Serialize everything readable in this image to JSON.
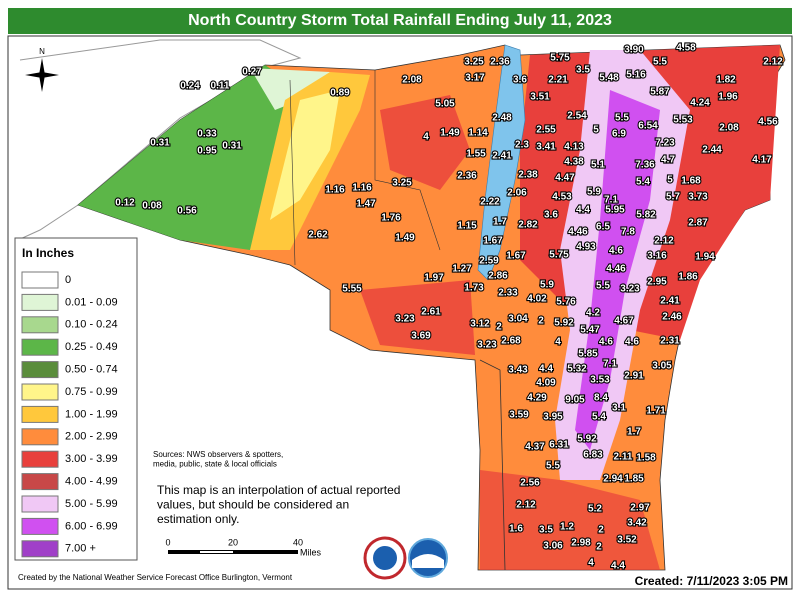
{
  "header": {
    "title": "North Country Storm Total Rainfall Ending July 11, 2023"
  },
  "legend": {
    "title": "In Inches",
    "items": [
      {
        "label": "0",
        "color": "#ffffff"
      },
      {
        "label": "0.01 - 0.09",
        "color": "#dff5d6"
      },
      {
        "label": "0.10 - 0.24",
        "color": "#a8d88e"
      },
      {
        "label": "0.25 - 0.49",
        "color": "#5cb648"
      },
      {
        "label": "0.50 - 0.74",
        "color": "#5a8d3b"
      },
      {
        "label": "0.75 - 0.99",
        "color": "#fff58a"
      },
      {
        "label": "1.00 - 1.99",
        "color": "#ffc83c"
      },
      {
        "label": "2.00 - 2.99",
        "color": "#ff8c3c"
      },
      {
        "label": "3.00 - 3.99",
        "color": "#e8403c"
      },
      {
        "label": "4.00 - 4.99",
        "color": "#c84848"
      },
      {
        "label": "5.00 - 5.99",
        "color": "#f0c8f5"
      },
      {
        "label": "6.00 - 6.99",
        "color": "#d050f0"
      },
      {
        "label": "7.00 +",
        "color": "#a040c8"
      }
    ]
  },
  "sources": "Sources: NWS observers & spotters,\nmedia, public, state & local officials",
  "disclaimer": "This map is an interpolation of actual reported\nvalues, but should be considered an\nestimation only.",
  "scale": {
    "ticks": [
      "0",
      "20",
      "40"
    ],
    "unit": "Miles"
  },
  "compass": "N",
  "credit": "Created by the National Weather Service Forecast Office Burlington, Vermont",
  "created": "Created: 7/11/2023 3:05 PM",
  "stations": [
    "3.25",
    "2.36",
    "5.75",
    "3.90",
    "4.58",
    "2.12",
    "5.5",
    "3.5",
    "5.48",
    "5.16",
    "3.17",
    "3.6",
    "2.21",
    "1.82",
    "1.96",
    "5.87",
    "3.51",
    "4.24",
    "0.27",
    "0.24",
    "0.11",
    "0.89",
    "2.08",
    "5.05",
    "2.48",
    "2.54",
    "5.5",
    "6.54",
    "5.53",
    "2.08",
    "4.56",
    "0.33",
    "0.31",
    "0.95",
    "0.31",
    "1.49",
    "1.14",
    "4",
    "2.55",
    "5",
    "6.9",
    "3.41",
    "4.13",
    "2.3",
    "7.23",
    "2.44",
    "1.55",
    "2.41",
    "4.38",
    "5.1",
    "7.36",
    "4.7",
    "4.17",
    "2.36",
    "2.38",
    "4.47",
    "5.4",
    "5",
    "1.68",
    "3.25",
    "1.16",
    "1.16",
    "2.06",
    "5.9",
    "7.1",
    "5.7",
    "3.73",
    "0.12",
    "0.08",
    "0.56",
    "1.47",
    "2.22",
    "4.53",
    "4.4",
    "5.95",
    "5.82",
    "2.87",
    "1.76",
    "1.15",
    "1.7",
    "2.82",
    "3.6",
    "6.5",
    "7.8",
    "2.62",
    "1.49",
    "1.67",
    "4.46",
    "2.12",
    "4.93",
    "4.6",
    "3.16",
    "1.94",
    "2.59",
    "1.67",
    "5.75",
    "1.27",
    "1.97",
    "4.46",
    "1.86",
    "2.86",
    "5.5",
    "3.23",
    "2.95",
    "5.55",
    "1.73",
    "2.33",
    "5.9",
    "4.02",
    "5.76",
    "2.41",
    "4.2",
    "2.46",
    "3.23",
    "2.61",
    "3.12",
    "2",
    "3.04",
    "2",
    "5.92",
    "5.47",
    "4.67",
    "3.69",
    "3.23",
    "2.68",
    "4",
    "4.6",
    "4.6",
    "2.31",
    "5.85",
    "7.1",
    "3.05",
    "3.43",
    "4.4",
    "5.32",
    "2.91",
    "4.09",
    "3.53",
    "4.29",
    "9.05",
    "8.4",
    "5.4",
    "3.1",
    "1.71",
    "3.59",
    "3.95",
    "1.7",
    "5.92",
    "6.31",
    "4.37",
    "6.83",
    "2.11",
    "1.58",
    "5.5",
    "2.94",
    "1.85",
    "2.56",
    "2.12",
    "5.2",
    "2.97",
    "3.42",
    "1.6",
    "3.5",
    "1.2",
    "2",
    "3.06",
    "2.98",
    "2",
    "3.52",
    "4",
    "4.4"
  ]
}
